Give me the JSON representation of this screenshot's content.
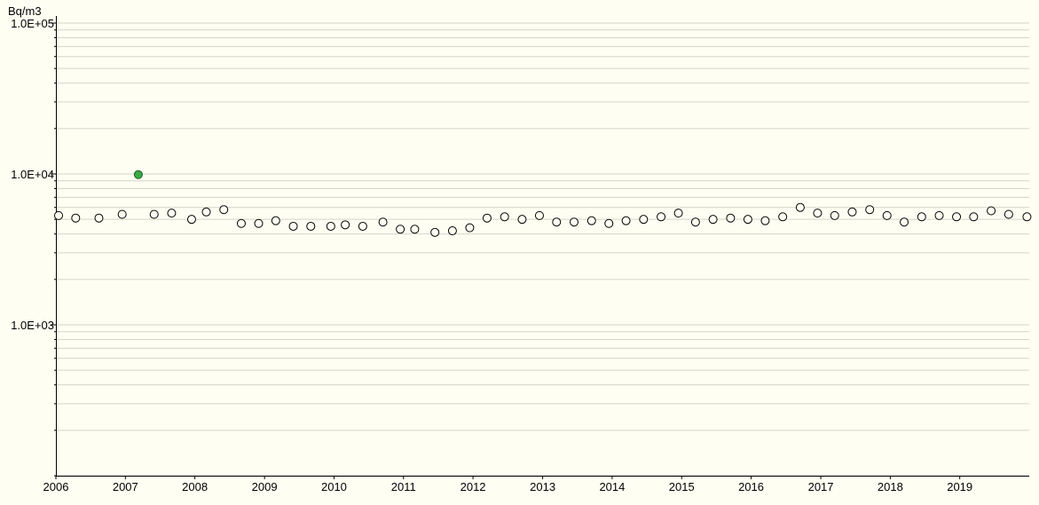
{
  "chart_data": {
    "type": "scatter",
    "title": "",
    "xlabel": "",
    "ylabel": "Bq/m3",
    "y_scale": "log",
    "ylim": [
      100,
      100000
    ],
    "xlim": [
      "2006-01-01",
      "2020-01-01"
    ],
    "grid": "horizontal",
    "y_tick_labels": [
      "1.0E+05",
      "1.0E+04",
      "1.0E+03"
    ],
    "x_tick_labels": [
      "2006",
      "2007",
      "2008",
      "2009",
      "2010",
      "2011",
      "2012",
      "2013",
      "2014",
      "2015",
      "2016",
      "2017",
      "2018",
      "2019"
    ],
    "series": [
      {
        "marker": "open-circle",
        "color": "#000000",
        "points": [
          {
            "x": "2006-01-15",
            "y": 5300
          },
          {
            "x": "2006-04-15",
            "y": 5100
          },
          {
            "x": "2006-08-15",
            "y": 5100
          },
          {
            "x": "2006-12-15",
            "y": 5400
          },
          {
            "x": "2007-06-01",
            "y": 5400
          },
          {
            "x": "2007-09-01",
            "y": 5500
          },
          {
            "x": "2007-12-15",
            "y": 5000
          },
          {
            "x": "2008-03-01",
            "y": 5600
          },
          {
            "x": "2008-06-01",
            "y": 5800
          },
          {
            "x": "2008-09-01",
            "y": 4700
          },
          {
            "x": "2008-12-01",
            "y": 4700
          },
          {
            "x": "2009-03-01",
            "y": 4900
          },
          {
            "x": "2009-06-01",
            "y": 4500
          },
          {
            "x": "2009-09-01",
            "y": 4500
          },
          {
            "x": "2009-12-15",
            "y": 4500
          },
          {
            "x": "2010-03-01",
            "y": 4600
          },
          {
            "x": "2010-06-01",
            "y": 4500
          },
          {
            "x": "2010-09-15",
            "y": 4800
          },
          {
            "x": "2010-12-15",
            "y": 4300
          },
          {
            "x": "2011-03-01",
            "y": 4300
          },
          {
            "x": "2011-06-15",
            "y": 4100
          },
          {
            "x": "2011-09-15",
            "y": 4200
          },
          {
            "x": "2011-12-15",
            "y": 4400
          },
          {
            "x": "2012-03-15",
            "y": 5100
          },
          {
            "x": "2012-06-15",
            "y": 5200
          },
          {
            "x": "2012-09-15",
            "y": 5000
          },
          {
            "x": "2012-12-15",
            "y": 5300
          },
          {
            "x": "2013-03-15",
            "y": 4800
          },
          {
            "x": "2013-06-15",
            "y": 4800
          },
          {
            "x": "2013-09-15",
            "y": 4900
          },
          {
            "x": "2013-12-15",
            "y": 4700
          },
          {
            "x": "2014-03-15",
            "y": 4900
          },
          {
            "x": "2014-06-15",
            "y": 5000
          },
          {
            "x": "2014-09-15",
            "y": 5200
          },
          {
            "x": "2014-12-15",
            "y": 5500
          },
          {
            "x": "2015-03-15",
            "y": 4800
          },
          {
            "x": "2015-06-15",
            "y": 5000
          },
          {
            "x": "2015-09-15",
            "y": 5100
          },
          {
            "x": "2015-12-15",
            "y": 5000
          },
          {
            "x": "2016-03-15",
            "y": 4900
          },
          {
            "x": "2016-06-15",
            "y": 5200
          },
          {
            "x": "2016-09-15",
            "y": 6000
          },
          {
            "x": "2016-12-15",
            "y": 5500
          },
          {
            "x": "2017-03-15",
            "y": 5300
          },
          {
            "x": "2017-06-15",
            "y": 5600
          },
          {
            "x": "2017-09-15",
            "y": 5800
          },
          {
            "x": "2017-12-15",
            "y": 5300
          },
          {
            "x": "2018-03-15",
            "y": 4800
          },
          {
            "x": "2018-06-15",
            "y": 5200
          },
          {
            "x": "2018-09-15",
            "y": 5300
          },
          {
            "x": "2018-12-15",
            "y": 5200
          },
          {
            "x": "2019-03-15",
            "y": 5200
          },
          {
            "x": "2019-06-15",
            "y": 5700
          },
          {
            "x": "2019-09-15",
            "y": 5400
          },
          {
            "x": "2019-12-20",
            "y": 5200
          }
        ]
      },
      {
        "marker": "filled-circle",
        "color": "#3aaa4a",
        "points": [
          {
            "x": "2007-03-10",
            "y": 9900
          }
        ]
      }
    ]
  }
}
